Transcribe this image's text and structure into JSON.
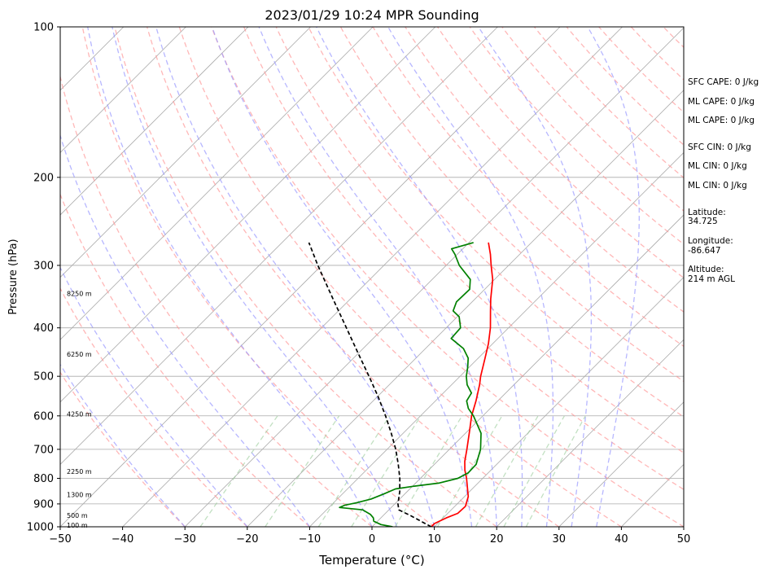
{
  "chart_data": {
    "type": "line",
    "title": "2023/01/29 10:24 MPR Sounding",
    "xlabel": "Temperature (°C)",
    "ylabel": "Pressure (hPa)",
    "xlim": [
      -50,
      50
    ],
    "ylim": [
      1000,
      100
    ],
    "y_scale": "log",
    "skew": true,
    "grid": true,
    "x_ticks": [
      -50,
      -40,
      -30,
      -20,
      -10,
      0,
      10,
      20,
      30,
      40,
      50
    ],
    "x_tick_labels": [
      "−50",
      "−40",
      "−30",
      "−20",
      "−10",
      "0",
      "10",
      "20",
      "30",
      "40",
      "50"
    ],
    "y_ticks": [
      1000,
      900,
      800,
      700,
      600,
      500,
      400,
      300,
      200,
      100
    ],
    "y_tick_labels": [
      "1000",
      "900",
      "800",
      "700",
      "600",
      "500",
      "400",
      "300",
      "200",
      "100"
    ],
    "series": [
      {
        "key": "temperature",
        "color": "#ff0000",
        "points": [
          [
            1000,
            9.5
          ],
          [
            985,
            9.5
          ],
          [
            960,
            10.5
          ],
          [
            940,
            11.6
          ],
          [
            910,
            11.7
          ],
          [
            870,
            10.6
          ],
          [
            830,
            8.8
          ],
          [
            800,
            7.4
          ],
          [
            770,
            5.8
          ],
          [
            740,
            4.4
          ],
          [
            700,
            2.8
          ],
          [
            650,
            0.6
          ],
          [
            600,
            -1.8
          ],
          [
            560,
            -3.5
          ],
          [
            520,
            -5.5
          ],
          [
            500,
            -6.7
          ],
          [
            460,
            -8.9
          ],
          [
            430,
            -10.7
          ],
          [
            400,
            -12.9
          ],
          [
            370,
            -15.6
          ],
          [
            350,
            -17.5
          ],
          [
            320,
            -20.3
          ],
          [
            300,
            -22.8
          ],
          [
            285,
            -24.7
          ],
          [
            270,
            -26.9
          ]
        ]
      },
      {
        "key": "dewpoint",
        "color": "#008000",
        "points": [
          [
            1000,
            3.3
          ],
          [
            990,
            1.1
          ],
          [
            975,
            -0.6
          ],
          [
            960,
            -1.2
          ],
          [
            945,
            -2.2
          ],
          [
            925,
            -4.2
          ],
          [
            915,
            -8.3
          ],
          [
            905,
            -7.8
          ],
          [
            895,
            -6.3
          ],
          [
            880,
            -4.6
          ],
          [
            860,
            -3.4
          ],
          [
            840,
            -2.3
          ],
          [
            830,
            0.1
          ],
          [
            818,
            3.7
          ],
          [
            800,
            6.0
          ],
          [
            780,
            6.8
          ],
          [
            750,
            6.7
          ],
          [
            700,
            5.0
          ],
          [
            650,
            2.5
          ],
          [
            600,
            -1.5
          ],
          [
            580,
            -3.5
          ],
          [
            560,
            -5.0
          ],
          [
            540,
            -5.5
          ],
          [
            520,
            -7.5
          ],
          [
            500,
            -9.0
          ],
          [
            480,
            -10.2
          ],
          [
            460,
            -11.6
          ],
          [
            440,
            -13.9
          ],
          [
            420,
            -17.5
          ],
          [
            400,
            -17.7
          ],
          [
            380,
            -19.7
          ],
          [
            370,
            -21.6
          ],
          [
            355,
            -22.5
          ],
          [
            335,
            -22.4
          ],
          [
            320,
            -23.9
          ],
          [
            300,
            -27.9
          ],
          [
            285,
            -30.4
          ],
          [
            278,
            -31.8
          ],
          [
            270,
            -29.3
          ]
        ]
      },
      {
        "key": "parcel",
        "color": "#000000",
        "dashed": true,
        "points": [
          [
            1000,
            9.5
          ],
          [
            950,
            4.4
          ],
          [
            925,
            1.6
          ],
          [
            900,
            0.5
          ],
          [
            850,
            -1.2
          ],
          [
            800,
            -3.3
          ],
          [
            750,
            -5.8
          ],
          [
            700,
            -8.6
          ],
          [
            650,
            -11.9
          ],
          [
            600,
            -15.6
          ],
          [
            550,
            -19.8
          ],
          [
            500,
            -24.6
          ],
          [
            450,
            -30.0
          ],
          [
            400,
            -36.0
          ],
          [
            350,
            -42.8
          ],
          [
            300,
            -50.6
          ],
          [
            270,
            -55.7
          ]
        ]
      }
    ],
    "height_labels": [
      {
        "p": 995,
        "label": "100 m"
      },
      {
        "p": 950,
        "label": "500 m"
      },
      {
        "p": 864,
        "label": "1300 m"
      },
      {
        "p": 777,
        "label": "2250 m"
      },
      {
        "p": 596,
        "label": "4250 m"
      },
      {
        "p": 452,
        "label": "6250 m"
      },
      {
        "p": 342,
        "label": "8250 m"
      }
    ],
    "isotherm_values": [
      -150,
      -140,
      -130,
      -120,
      -110,
      -100,
      -90,
      -80,
      -70,
      -60,
      -50,
      -40,
      -30,
      -20,
      -10,
      0,
      10,
      20,
      30,
      40,
      50
    ],
    "dry_adiabat_thetas": [
      -30,
      -20,
      -10,
      0,
      10,
      20,
      30,
      40,
      50,
      60,
      70,
      80,
      90,
      100,
      110,
      120,
      130,
      140,
      150,
      160,
      170,
      180,
      190,
      200
    ],
    "moist_adiabat_starts": [
      -30,
      -20,
      -10,
      0,
      4,
      10,
      16,
      20,
      24,
      28,
      32,
      36
    ],
    "mixing_ratios": [
      0.4,
      1,
      2,
      3,
      5,
      8,
      12,
      16,
      20
    ],
    "colors": {
      "temperature": "#ff0000",
      "dewpoint": "#008000",
      "parcel": "#000000",
      "dry_adiabat": "#ff9999",
      "moist_adiabat": "#9999ff",
      "mixing_ratio": "#99cc99",
      "isotherm": "#aaaaaa",
      "grid": "#aaaaaa"
    }
  },
  "info_panel": {
    "sfc_cape": "SFC CAPE: 0 J/kg",
    "ml_cape_1": "ML CAPE: 0 J/kg",
    "ml_cape_2": "ML CAPE: 0 J/kg",
    "sfc_cin": "SFC CIN: 0 J/kg",
    "ml_cin_1": "ML CIN: 0 J/kg",
    "ml_cin_2": "ML CIN: 0 J/kg",
    "latitude_label": "Latitude:",
    "latitude_value": "34.725",
    "longitude_label": "Longitude:",
    "longitude_value": "-86.647",
    "altitude_label": "Altitude:",
    "altitude_value": "214 m AGL"
  }
}
